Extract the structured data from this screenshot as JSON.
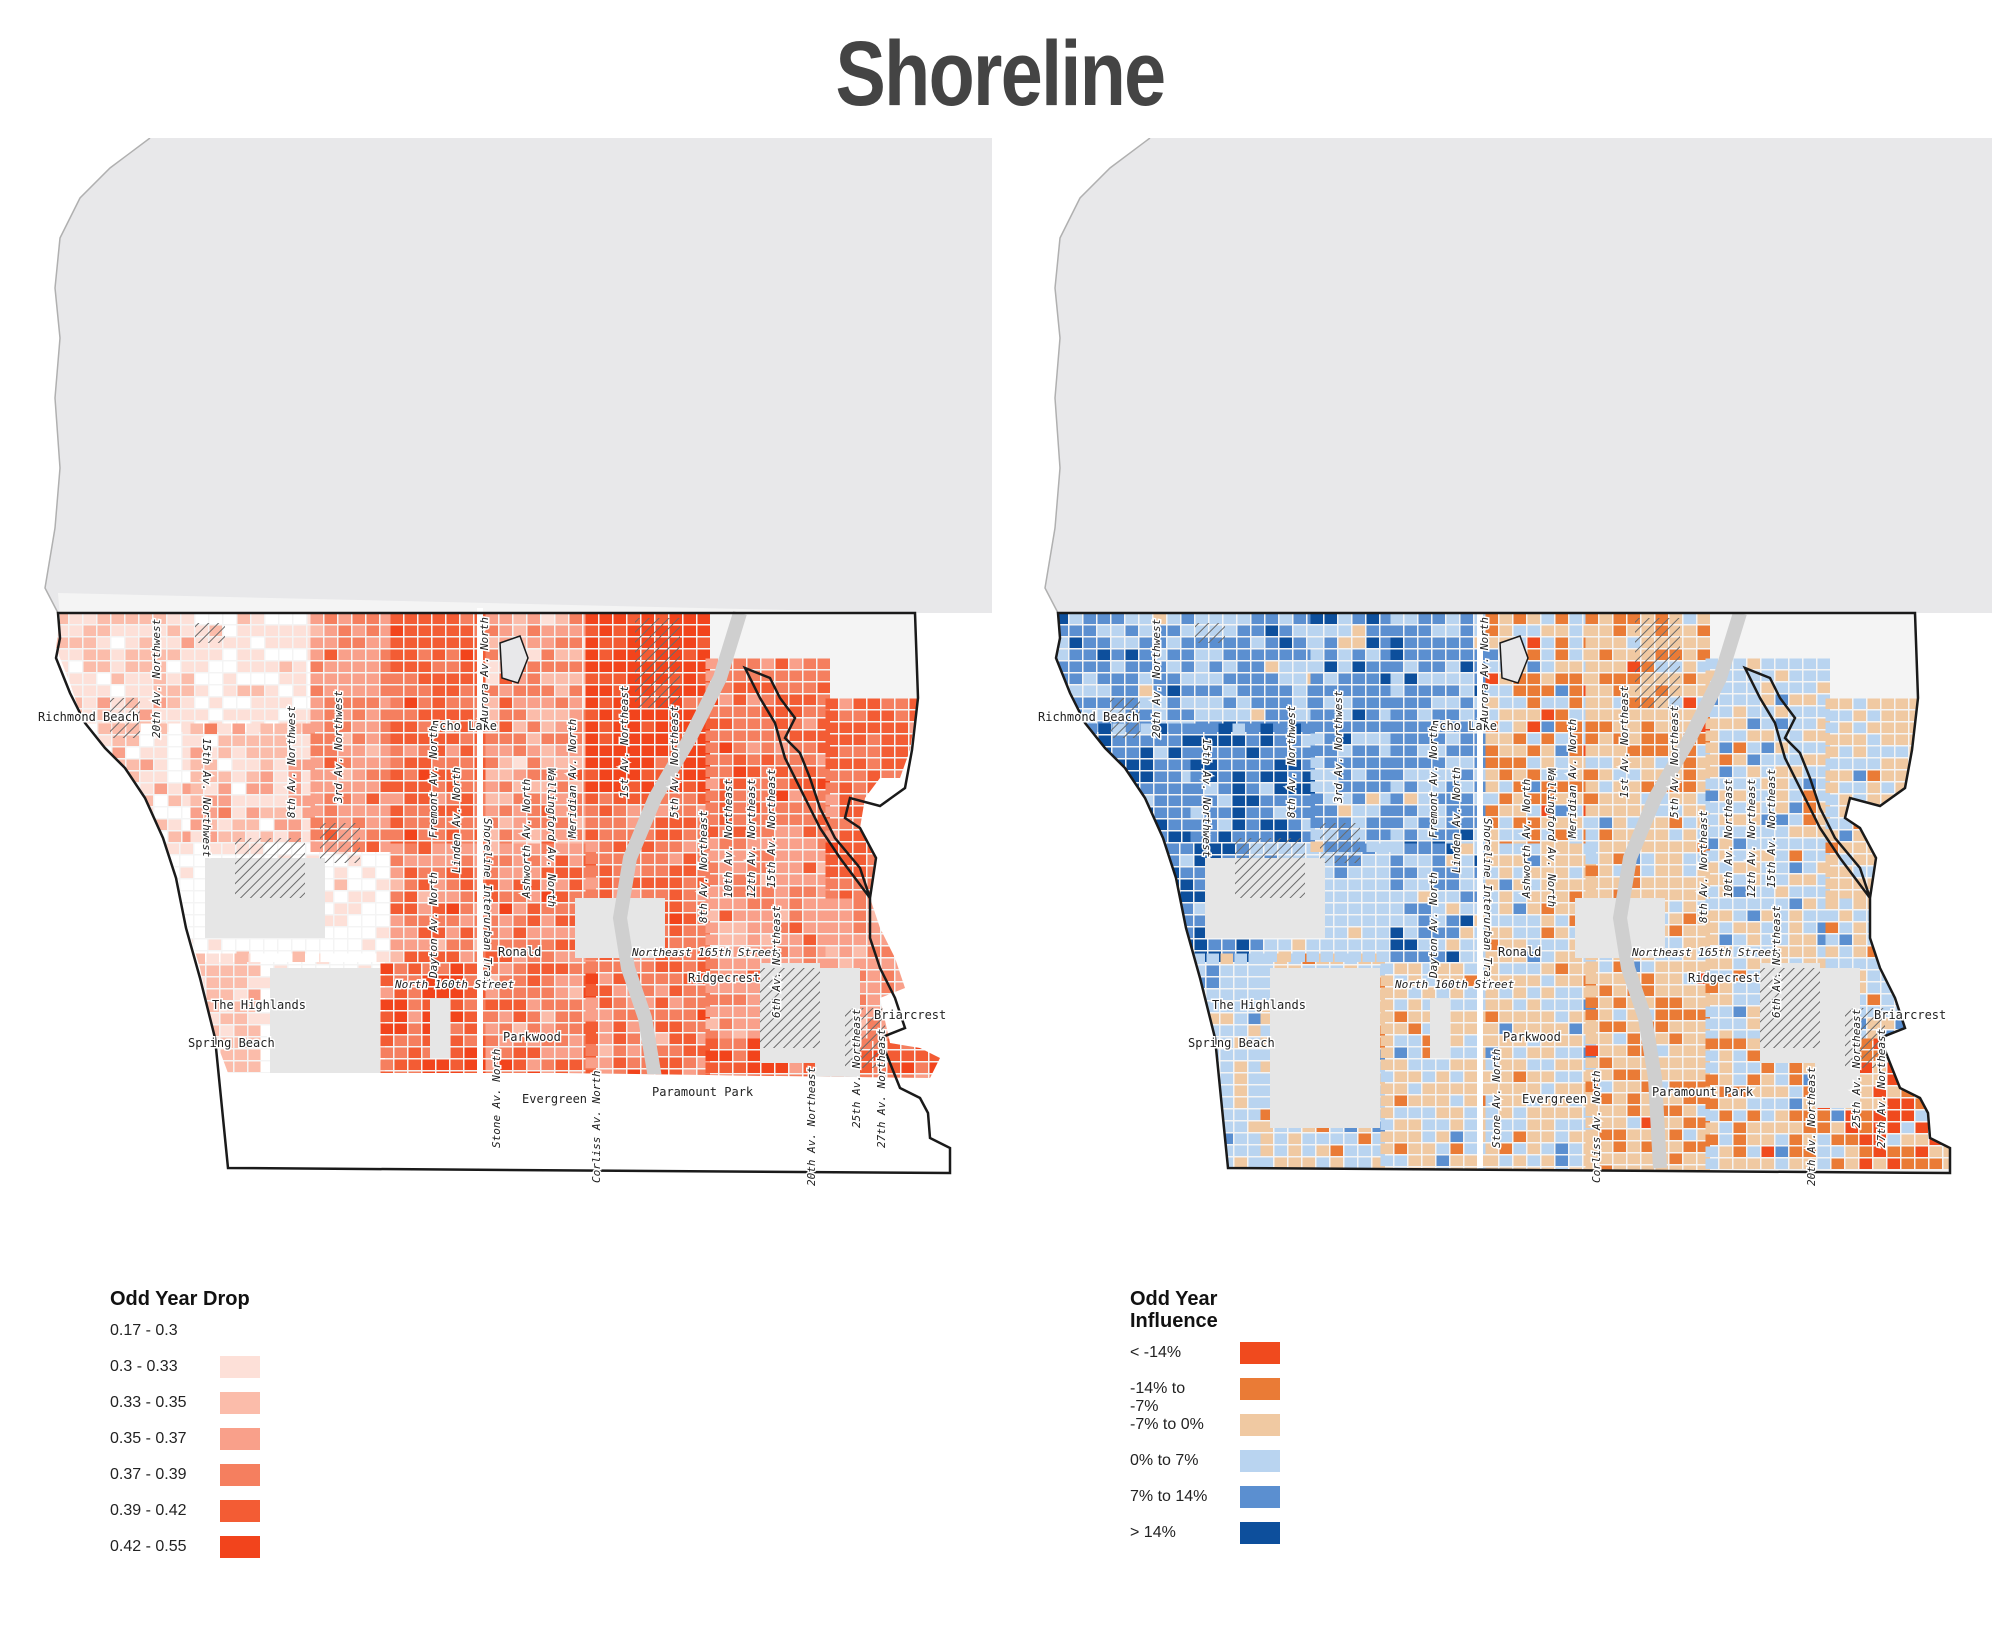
{
  "title": "Shoreline",
  "colors": {
    "background": "#ffffff",
    "water": "#e8e8ea",
    "land_outline": "#1a1a1a",
    "hatch": "#6a6a6a"
  },
  "map_labels": {
    "neighborhoods": [
      "Richmond Beach",
      "Echo Lake",
      "Ronald",
      "Ridgecrest",
      "The Highlands",
      "Spring Beach",
      "Parkwood",
      "Briarcrest",
      "Evergreen",
      "Paramount Park"
    ],
    "streets": [
      "20th Av. Northwest",
      "15th Av. Northwest",
      "8th Av. Northwest",
      "3rd Av. Northwest",
      "Fremont Av. North",
      "Linden Av. North",
      "Aurora Av. North",
      "Shoreline Interurban Trail",
      "Ashworth Av. North",
      "Wallingford Av. North",
      "Meridian Av. North",
      "1st Av. Northeast",
      "5th Av. Northeast",
      "8th Av. Northeast",
      "10th Av. Northeast",
      "12th Av. Northeast",
      "15th Av. Northeast",
      "6th Av. Northeast",
      "Dayton Av. North",
      "North 160th Street",
      "Northeast 165th Street",
      "Stone Av. North",
      "Corliss Av. North",
      "20th Av. Northeast",
      "25th Av. Northeast",
      "27th Av. Northeast"
    ]
  },
  "legends": {
    "left": {
      "title": "Odd Year Drop",
      "items": [
        {
          "label": "0.17 - 0.3",
          "color": "#ffffff"
        },
        {
          "label": "0.3 - 0.33",
          "color": "#fde0d8"
        },
        {
          "label": "0.33 - 0.35",
          "color": "#fbbcaa"
        },
        {
          "label": "0.35 - 0.37",
          "color": "#f9a08a"
        },
        {
          "label": "0.37 - 0.39",
          "color": "#f57f5f"
        },
        {
          "label": "0.39 - 0.42",
          "color": "#f35c34"
        },
        {
          "label": "0.42 - 0.55",
          "color": "#f2441c"
        }
      ]
    },
    "right": {
      "title_line1": "Odd Year",
      "title_line2": "Influence",
      "items": [
        {
          "label": "< -14%",
          "color": "#f04a1e"
        },
        {
          "label": "-14% to -7%",
          "color": "#ea7b36"
        },
        {
          "label": "-7% to 0%",
          "color": "#f0c9a2"
        },
        {
          "label": "0% to 7%",
          "color": "#b9d4f0"
        },
        {
          "label": "7% to 14%",
          "color": "#5b8fd0"
        },
        {
          "label": "> 14%",
          "color": "#0d4f9c"
        }
      ]
    }
  }
}
